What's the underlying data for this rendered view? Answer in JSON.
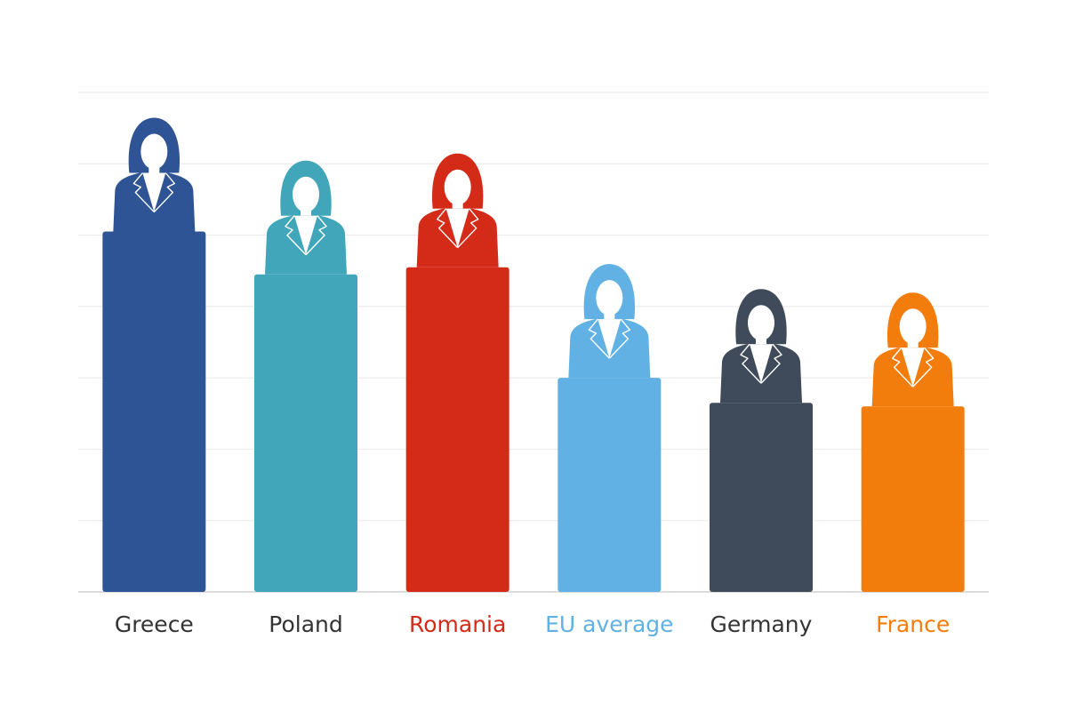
{
  "chart_data": {
    "type": "bar",
    "title": "",
    "xlabel": "",
    "ylabel": "",
    "ylim": [
      0,
      7
    ],
    "grid": true,
    "grid_step": 1,
    "legend": "none",
    "categories": [
      "Greece",
      "Poland",
      "Romania",
      "EU average",
      "Germany",
      "France"
    ],
    "values": [
      5.05,
      4.45,
      4.55,
      3.0,
      2.65,
      2.6
    ],
    "colors": [
      "#2f5496",
      "#42a6bb",
      "#d42b18",
      "#61b1e4",
      "#3f4a5a",
      "#f27d0c"
    ],
    "label_colors": [
      "#333333",
      "#333333",
      "#d42b18",
      "#61b1e4",
      "#333333",
      "#f27d0c"
    ],
    "marker_icon": "businesswoman-icon"
  }
}
